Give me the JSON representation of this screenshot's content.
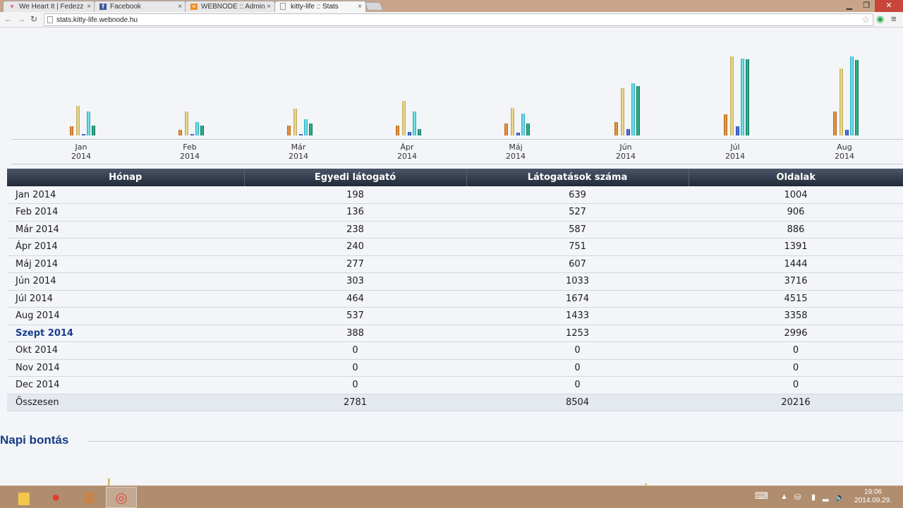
{
  "browser": {
    "tabs": [
      {
        "title": "We Heart It | Fedezz",
        "icon": "heart-icon"
      },
      {
        "title": "Facebook",
        "icon": "facebook-icon"
      },
      {
        "title": "WEBNODE :: Admin",
        "icon": "webnode-icon"
      },
      {
        "title": "kitty-life :: Stats",
        "icon": "page-icon",
        "active": true
      }
    ],
    "url": "stats.kitty-life.webnode.hu"
  },
  "chart_data": {
    "type": "bar",
    "categories": [
      "Jan 2014",
      "Feb 2014",
      "Már 2014",
      "Ápr 2014",
      "Máj 2014",
      "Jún 2014",
      "Júl 2014",
      "Aug 2014"
    ],
    "series": [
      {
        "values": [
          12,
          8,
          13,
          13,
          16,
          18,
          28,
          32
        ]
      },
      {
        "values": [
          40,
          32,
          36,
          46,
          37,
          64,
          106,
          90
        ]
      },
      {
        "values": [
          2,
          2,
          2,
          5,
          4,
          9,
          12,
          8
        ]
      },
      {
        "values": [
          32,
          18,
          22,
          32,
          29,
          70,
          103,
          106
        ]
      },
      {
        "values": [
          13,
          13,
          16,
          9,
          16,
          66,
          102,
          101
        ]
      }
    ],
    "colors": [
      "#e28a2c",
      "#e4d286",
      "#3b63d1",
      "#3fd3e0",
      "#1e9874"
    ],
    "ylim": [
      0,
      110
    ],
    "xlabel": "",
    "ylabel": "",
    "title": "",
    "grid": false,
    "legend": "none"
  },
  "table": {
    "headers": [
      "Hónap",
      "Egyedi látogató",
      "Látogatások száma",
      "Oldalak"
    ],
    "rows": [
      [
        "Jan 2014",
        "198",
        "639",
        "1004"
      ],
      [
        "Feb 2014",
        "136",
        "527",
        "906"
      ],
      [
        "Már 2014",
        "238",
        "587",
        "886"
      ],
      [
        "Ápr 2014",
        "240",
        "751",
        "1391"
      ],
      [
        "Máj 2014",
        "277",
        "607",
        "1444"
      ],
      [
        "Jún 2014",
        "303",
        "1033",
        "3716"
      ],
      [
        "Júl 2014",
        "464",
        "1674",
        "4515"
      ],
      [
        "Aug 2014",
        "537",
        "1433",
        "3358"
      ],
      [
        "Szept 2014",
        "388",
        "1253",
        "2996"
      ],
      [
        "Okt 2014",
        "0",
        "0",
        "0"
      ],
      [
        "Nov 2014",
        "0",
        "0",
        "0"
      ],
      [
        "Dec 2014",
        "0",
        "0",
        "0"
      ]
    ],
    "current_row_index": 8,
    "total": [
      "Összesen",
      "2781",
      "8504",
      "20216"
    ]
  },
  "section": {
    "title": "Napi bontás"
  },
  "taskbar": {
    "apps": [
      "file-explorer-icon",
      "paint-icon",
      "firefox-icon",
      "chrome-icon"
    ],
    "time": "19:06",
    "date": "2014.09.29."
  }
}
